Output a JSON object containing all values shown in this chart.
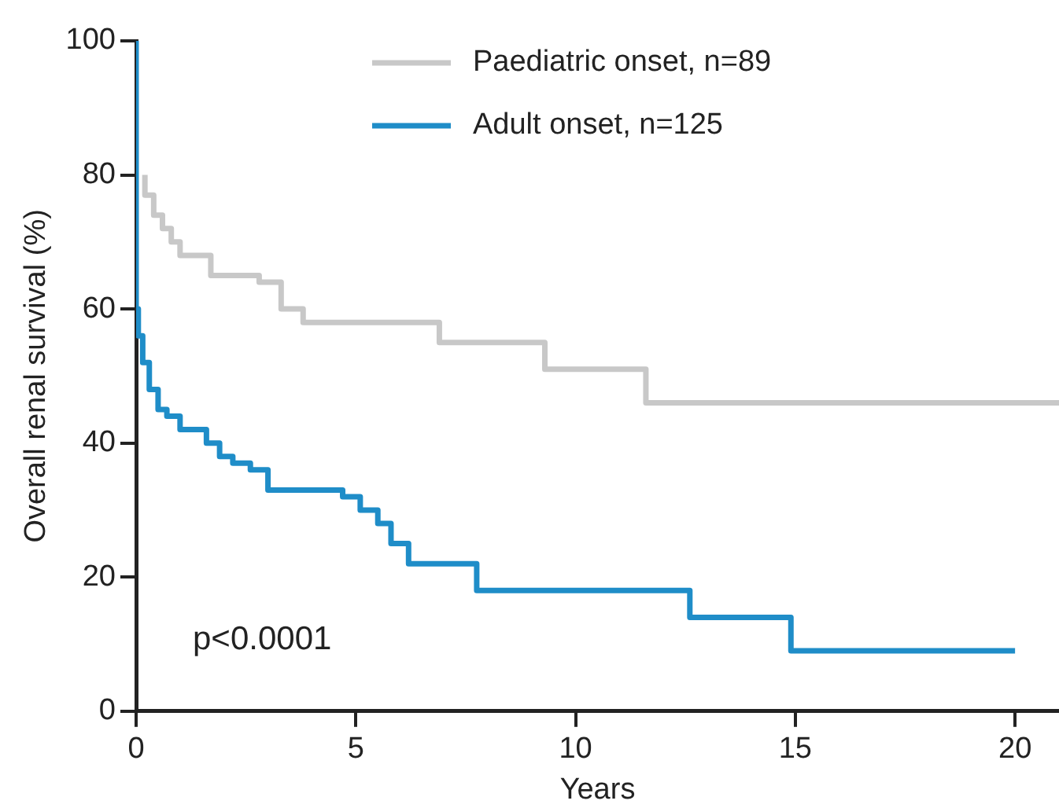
{
  "chart_data": {
    "type": "step",
    "xlabel": "Years",
    "ylabel": "Overall renal survival (%)",
    "xlim": [
      0,
      21
    ],
    "ylim": [
      0,
      100
    ],
    "xticks": [
      0,
      5,
      10,
      15,
      20
    ],
    "yticks": [
      0,
      20,
      40,
      60,
      80,
      100
    ],
    "grid": false,
    "legend": "top right",
    "marker": "none",
    "line_style": "solid",
    "annotations": [
      "p<0.0001"
    ],
    "series": [
      {
        "name": "Paediatric onset, n=89",
        "color": "#c8c8c8",
        "x": [
          0.2,
          0.4,
          0.6,
          0.8,
          1,
          1.7,
          2.8,
          3.3,
          3.8,
          6.9,
          9.3,
          11.6,
          18.4,
          21
        ],
        "values": [
          80,
          77,
          74,
          72,
          70,
          68,
          65,
          64,
          60,
          58,
          55,
          51,
          46,
          46
        ]
      },
      {
        "name": "Adult onset, n=125",
        "color": "#1f8dc8",
        "x": [
          0,
          0.05,
          0.15,
          0.3,
          0.5,
          0.7,
          1,
          1.6,
          1.9,
          2.2,
          2.6,
          3,
          3.4,
          4.7,
          5.1,
          5.5,
          5.8,
          6.2,
          7.75,
          12.6,
          14.9,
          15.2,
          20
        ],
        "values": [
          100,
          60,
          56,
          52,
          48,
          45,
          44,
          42,
          40,
          38,
          37,
          36,
          33,
          33,
          32,
          30,
          28,
          25,
          22,
          18,
          14,
          9,
          9
        ]
      }
    ]
  }
}
